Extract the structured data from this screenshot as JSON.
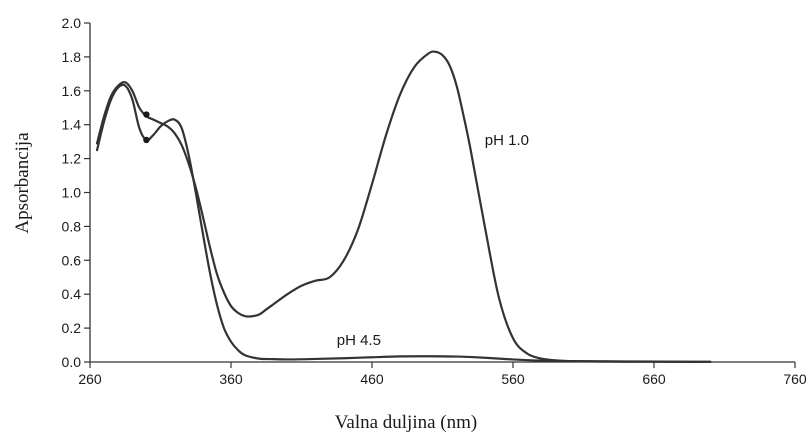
{
  "chart_data": {
    "type": "line",
    "title": "",
    "xlabel": "Valna duljina (nm)",
    "ylabel": "Apsorbancija",
    "xlim": [
      260,
      760
    ],
    "ylim": [
      0,
      2.0
    ],
    "xticks": [
      260,
      360,
      460,
      560,
      660,
      760
    ],
    "yticks": [
      0.0,
      0.2,
      0.4,
      0.6,
      0.8,
      1.0,
      1.2,
      1.4,
      1.6,
      1.8,
      2.0
    ],
    "xtick_labels": [
      "260",
      "360",
      "460",
      "560",
      "660",
      "760"
    ],
    "ytick_labels": [
      "0.0",
      "0.2",
      "0.4",
      "0.6",
      "0.8",
      "1.0",
      "1.2",
      "1.4",
      "1.6",
      "1.8",
      "2.0"
    ],
    "grid": false,
    "series": [
      {
        "name": "pH 1.0",
        "color": "#333333",
        "x": [
          265,
          270,
          275,
          280,
          285,
          290,
          295,
          300,
          305,
          310,
          315,
          320,
          325,
          330,
          335,
          340,
          345,
          350,
          355,
          360,
          365,
          370,
          375,
          380,
          385,
          390,
          400,
          410,
          420,
          430,
          440,
          450,
          460,
          470,
          480,
          490,
          500,
          505,
          510,
          515,
          520,
          525,
          530,
          540,
          550,
          560,
          570,
          580,
          590,
          600,
          620,
          640,
          660,
          680,
          700
        ],
        "y": [
          1.29,
          1.45,
          1.57,
          1.63,
          1.65,
          1.6,
          1.5,
          1.45,
          1.43,
          1.41,
          1.39,
          1.35,
          1.28,
          1.17,
          1.03,
          0.86,
          0.68,
          0.52,
          0.41,
          0.33,
          0.29,
          0.27,
          0.27,
          0.28,
          0.31,
          0.34,
          0.4,
          0.45,
          0.48,
          0.5,
          0.6,
          0.78,
          1.05,
          1.34,
          1.58,
          1.74,
          1.82,
          1.83,
          1.81,
          1.75,
          1.63,
          1.45,
          1.25,
          0.8,
          0.38,
          0.14,
          0.05,
          0.02,
          0.01,
          0.005,
          0.003,
          0.002,
          0.002,
          0.001,
          0.001
        ]
      },
      {
        "name": "pH 4.5",
        "color": "#333333",
        "x": [
          265,
          270,
          275,
          280,
          285,
          290,
          295,
          300,
          305,
          310,
          315,
          320,
          325,
          330,
          335,
          340,
          345,
          350,
          355,
          360,
          365,
          370,
          380,
          390,
          400,
          420,
          440,
          460,
          480,
          500,
          520,
          540,
          560,
          580,
          600,
          640,
          700
        ],
        "y": [
          1.25,
          1.42,
          1.55,
          1.62,
          1.63,
          1.55,
          1.38,
          1.31,
          1.34,
          1.39,
          1.42,
          1.43,
          1.38,
          1.22,
          1.0,
          0.76,
          0.53,
          0.34,
          0.2,
          0.12,
          0.07,
          0.04,
          0.02,
          0.017,
          0.015,
          0.018,
          0.022,
          0.028,
          0.033,
          0.034,
          0.032,
          0.025,
          0.015,
          0.008,
          0.005,
          0.003,
          0.001
        ]
      }
    ],
    "markers": [
      {
        "x": 300,
        "y": 1.46
      },
      {
        "x": 300,
        "y": 1.31
      }
    ],
    "annotations": [
      {
        "text": "pH 1.0",
        "x": 540,
        "y": 1.28
      },
      {
        "text": "pH 4.5",
        "x": 435,
        "y": 0.1
      }
    ]
  }
}
